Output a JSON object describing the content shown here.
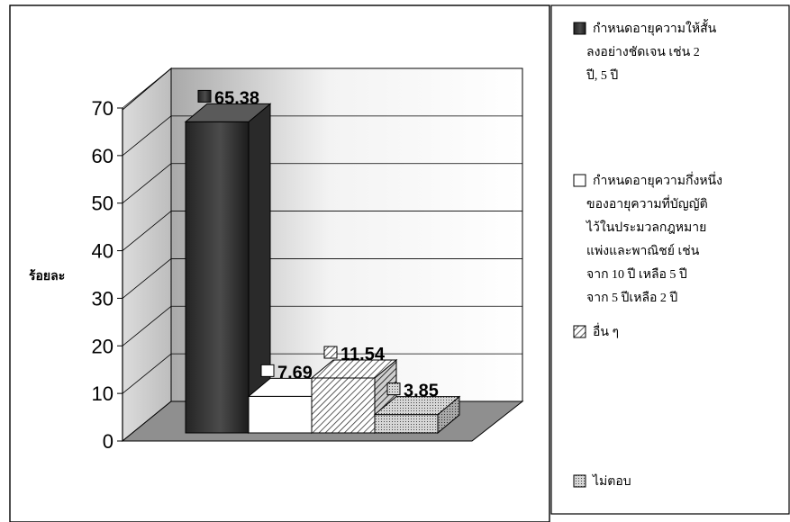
{
  "chart_data": {
    "type": "bar",
    "ylabel": "ร้อยละ",
    "xlabel": "",
    "title": "",
    "ylim": [
      0,
      70
    ],
    "yticks": [
      0,
      10,
      20,
      30,
      40,
      50,
      60,
      70
    ],
    "grid": true,
    "three_d": true,
    "legend_position": "right",
    "series": [
      {
        "name": "กำหนดอายุความให้สั้นลงอย่างชัดเจน เช่น 2 ปี, 5 ปี",
        "value": 65.38,
        "label": "65.38",
        "fill": "dark-gradient",
        "color": "#3a3a3a"
      },
      {
        "name": "กำหนดอายุความกึ่งหนึ่งของอายุความที่บัญญัติไว้ในประมวลกฎหมายแพ่งและพาณิชย์ เช่น จาก 10 ปี เหลือ 5 ปี จาก 5 ปีเหลือ 2 ปี",
        "value": 7.69,
        "label": "7.69",
        "fill": "white",
        "color": "#ffffff"
      },
      {
        "name": "อื่น ๆ",
        "value": 11.54,
        "label": "11.54",
        "fill": "diagonal-hatch",
        "color": "#888888"
      },
      {
        "name": "ไม่ตอบ",
        "value": 3.85,
        "label": "3.85",
        "fill": "dotted",
        "color": "#aaaaaa"
      }
    ],
    "legend_lines": [
      [
        "กำหนดอายุความให้สั้น",
        "ลงอย่างชัดเจน เช่น 2",
        "ปี, 5 ปี"
      ],
      [
        "กำหนดอายุความกึ่งหนึ่ง",
        "ของอายุความที่บัญญัติ",
        "ไว้ในประมวลกฎหมาย",
        "แพ่งและพาณิชย์ เช่น",
        "จาก 10 ปี เหลือ 5 ปี",
        "จาก 5 ปีเหลือ 2 ปี"
      ],
      [
        "อื่น ๆ"
      ],
      [
        "ไม่ตอบ"
      ]
    ]
  }
}
